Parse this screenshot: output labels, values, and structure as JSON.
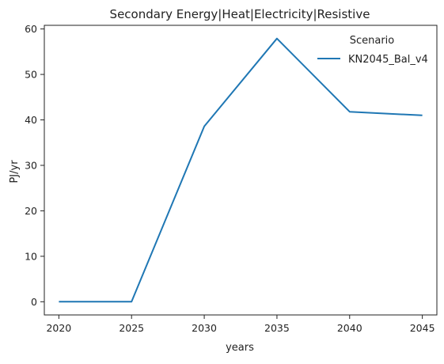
{
  "chart_data": {
    "type": "line",
    "title": "Secondary Energy|Heat|Electricity|Resistive",
    "xlabel": "years",
    "ylabel": "PJ/yr",
    "x": [
      2020,
      2025,
      2030,
      2035,
      2040,
      2045
    ],
    "xlim": [
      2019,
      2046
    ],
    "ylim": [
      -2.9,
      60.8
    ],
    "xticks": [
      2020,
      2025,
      2030,
      2035,
      2040,
      2045
    ],
    "yticks": [
      0,
      10,
      20,
      30,
      40,
      50,
      60
    ],
    "grid": false,
    "legend": {
      "title": "Scenario",
      "placement": "top-right",
      "frame": false
    },
    "series": [
      {
        "name": "KN2045_Bal_v4",
        "color": "#1f77b4",
        "values": [
          0.0,
          0.0,
          38.6,
          57.9,
          41.8,
          41.0
        ]
      }
    ]
  }
}
